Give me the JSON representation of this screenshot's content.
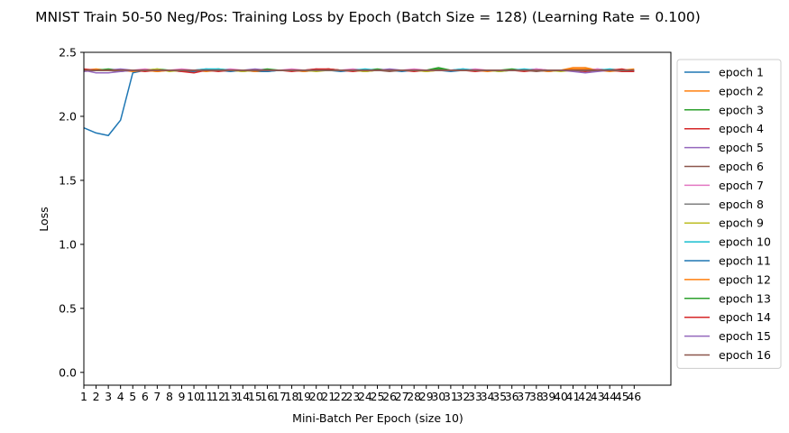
{
  "chart_data": {
    "type": "line",
    "title": "MNIST Train 50-50 Neg/Pos: Training Loss by Epoch (Batch Size = 128) (Learning Rate = 0.100)",
    "xlabel": "Mini-Batch Per Epoch (size 10)",
    "ylabel": "Loss",
    "xlim": [
      1,
      49
    ],
    "ylim": [
      -0.1,
      2.5
    ],
    "x_ticks": [
      1,
      2,
      3,
      4,
      5,
      6,
      7,
      8,
      9,
      10,
      11,
      12,
      13,
      14,
      15,
      16,
      17,
      18,
      19,
      20,
      21,
      22,
      23,
      24,
      25,
      26,
      27,
      28,
      29,
      30,
      31,
      32,
      33,
      34,
      35,
      36,
      37,
      38,
      39,
      40,
      41,
      42,
      43,
      44,
      45,
      46
    ],
    "y_ticks": [
      "0.0",
      "0.5",
      "1.0",
      "1.5",
      "2.0",
      "2.5"
    ],
    "y_tick_values": [
      0.0,
      0.5,
      1.0,
      1.5,
      2.0,
      2.5
    ],
    "legend_position": "outside-right",
    "grid": false,
    "x": [
      1,
      2,
      3,
      4,
      5,
      6,
      7,
      8,
      9,
      10,
      11,
      12,
      13,
      14,
      15,
      16,
      17,
      18,
      19,
      20,
      21,
      22,
      23,
      24,
      25,
      26,
      27,
      28,
      29,
      30,
      31,
      32,
      33,
      34,
      35,
      36,
      37,
      38,
      39,
      40,
      41,
      42,
      43,
      44,
      45,
      46
    ],
    "series": [
      {
        "name": "epoch 1",
        "color": "#1f77b4",
        "values": [
          1.91,
          1.87,
          1.85,
          1.97,
          2.34,
          2.36,
          2.36,
          2.36,
          2.35,
          2.35,
          2.36,
          2.36,
          2.35,
          2.36,
          2.35,
          2.35,
          2.36,
          2.36,
          2.35,
          2.36,
          2.36,
          2.35,
          2.36,
          2.35,
          2.36,
          2.36,
          2.35,
          2.36,
          2.36,
          2.36,
          2.35,
          2.36,
          2.36,
          2.36,
          2.35,
          2.36,
          2.36,
          2.36,
          2.35,
          2.36,
          2.36,
          2.35,
          2.36,
          2.36,
          2.36,
          2.36
        ]
      },
      {
        "name": "epoch 2",
        "color": "#ff7f0e",
        "values": [
          2.36,
          2.37,
          2.36,
          2.36,
          2.35,
          2.36,
          2.35,
          2.36,
          2.36,
          2.36,
          2.35,
          2.36,
          2.36,
          2.36,
          2.35,
          2.36,
          2.36,
          2.36,
          2.35,
          2.36,
          2.36,
          2.36,
          2.36,
          2.35,
          2.36,
          2.36,
          2.36,
          2.36,
          2.35,
          2.36,
          2.36,
          2.36,
          2.36,
          2.35,
          2.36,
          2.36,
          2.36,
          2.36,
          2.35,
          2.36,
          2.38,
          2.38,
          2.36,
          2.35,
          2.36,
          2.37
        ]
      },
      {
        "name": "epoch 3",
        "color": "#2ca02c",
        "values": [
          2.36,
          2.36,
          2.37,
          2.36,
          2.36,
          2.36,
          2.37,
          2.36,
          2.36,
          2.36,
          2.36,
          2.37,
          2.36,
          2.36,
          2.36,
          2.37,
          2.36,
          2.36,
          2.36,
          2.36,
          2.37,
          2.36,
          2.36,
          2.36,
          2.37,
          2.36,
          2.36,
          2.36,
          2.36,
          2.38,
          2.36,
          2.36,
          2.36,
          2.36,
          2.36,
          2.37,
          2.36,
          2.36,
          2.36,
          2.36,
          2.36,
          2.37,
          2.36,
          2.36,
          2.36,
          2.36
        ]
      },
      {
        "name": "epoch 4",
        "color": "#d62728",
        "values": [
          2.37,
          2.36,
          2.36,
          2.36,
          2.36,
          2.35,
          2.36,
          2.36,
          2.35,
          2.34,
          2.36,
          2.35,
          2.36,
          2.36,
          2.36,
          2.36,
          2.36,
          2.35,
          2.36,
          2.36,
          2.37,
          2.36,
          2.35,
          2.36,
          2.36,
          2.36,
          2.36,
          2.35,
          2.36,
          2.36,
          2.36,
          2.36,
          2.35,
          2.36,
          2.36,
          2.36,
          2.35,
          2.36,
          2.36,
          2.36,
          2.36,
          2.35,
          2.36,
          2.36,
          2.35,
          2.35
        ]
      },
      {
        "name": "epoch 5",
        "color": "#9467bd",
        "values": [
          2.35,
          2.36,
          2.36,
          2.37,
          2.36,
          2.36,
          2.36,
          2.36,
          2.36,
          2.36,
          2.37,
          2.36,
          2.36,
          2.36,
          2.37,
          2.36,
          2.36,
          2.36,
          2.36,
          2.37,
          2.36,
          2.36,
          2.36,
          2.36,
          2.36,
          2.37,
          2.36,
          2.36,
          2.36,
          2.36,
          2.36,
          2.37,
          2.36,
          2.36,
          2.36,
          2.36,
          2.36,
          2.37,
          2.36,
          2.36,
          2.36,
          2.36,
          2.37,
          2.36,
          2.36,
          2.36
        ]
      },
      {
        "name": "epoch 6",
        "color": "#8c564b",
        "values": [
          2.36,
          2.36,
          2.36,
          2.35,
          2.36,
          2.36,
          2.36,
          2.36,
          2.36,
          2.36,
          2.36,
          2.36,
          2.36,
          2.35,
          2.36,
          2.36,
          2.36,
          2.36,
          2.36,
          2.36,
          2.36,
          2.36,
          2.36,
          2.36,
          2.36,
          2.35,
          2.36,
          2.36,
          2.36,
          2.36,
          2.36,
          2.36,
          2.36,
          2.36,
          2.36,
          2.36,
          2.36,
          2.35,
          2.36,
          2.36,
          2.36,
          2.36,
          2.36,
          2.36,
          2.36,
          2.36
        ]
      },
      {
        "name": "epoch 7",
        "color": "#e377c2",
        "values": [
          2.36,
          2.36,
          2.36,
          2.36,
          2.36,
          2.37,
          2.36,
          2.36,
          2.37,
          2.36,
          2.36,
          2.36,
          2.37,
          2.36,
          2.36,
          2.36,
          2.36,
          2.37,
          2.36,
          2.36,
          2.36,
          2.36,
          2.37,
          2.36,
          2.36,
          2.36,
          2.36,
          2.37,
          2.36,
          2.36,
          2.36,
          2.36,
          2.37,
          2.36,
          2.36,
          2.36,
          2.36,
          2.37,
          2.36,
          2.36,
          2.36,
          2.36,
          2.37,
          2.36,
          2.36,
          2.36
        ]
      },
      {
        "name": "epoch 8",
        "color": "#7f7f7f",
        "values": [
          2.36,
          2.36,
          2.36,
          2.36,
          2.36,
          2.36,
          2.36,
          2.36,
          2.36,
          2.36,
          2.36,
          2.36,
          2.36,
          2.36,
          2.36,
          2.36,
          2.36,
          2.36,
          2.36,
          2.36,
          2.36,
          2.36,
          2.36,
          2.36,
          2.36,
          2.36,
          2.36,
          2.36,
          2.36,
          2.36,
          2.36,
          2.36,
          2.36,
          2.36,
          2.36,
          2.36,
          2.36,
          2.36,
          2.36,
          2.36,
          2.36,
          2.36,
          2.36,
          2.36,
          2.36,
          2.36
        ]
      },
      {
        "name": "epoch 9",
        "color": "#bcbd22",
        "values": [
          2.36,
          2.36,
          2.36,
          2.36,
          2.36,
          2.36,
          2.37,
          2.35,
          2.36,
          2.36,
          2.36,
          2.36,
          2.36,
          2.35,
          2.36,
          2.36,
          2.36,
          2.36,
          2.36,
          2.35,
          2.36,
          2.36,
          2.36,
          2.35,
          2.36,
          2.36,
          2.36,
          2.36,
          2.35,
          2.36,
          2.36,
          2.36,
          2.36,
          2.36,
          2.35,
          2.36,
          2.36,
          2.36,
          2.36,
          2.35,
          2.36,
          2.36,
          2.36,
          2.36,
          2.36,
          2.36
        ]
      },
      {
        "name": "epoch 10",
        "color": "#17becf",
        "values": [
          2.36,
          2.36,
          2.36,
          2.36,
          2.36,
          2.36,
          2.36,
          2.36,
          2.36,
          2.36,
          2.37,
          2.37,
          2.36,
          2.36,
          2.36,
          2.36,
          2.36,
          2.36,
          2.36,
          2.36,
          2.36,
          2.36,
          2.36,
          2.37,
          2.36,
          2.36,
          2.36,
          2.36,
          2.36,
          2.36,
          2.36,
          2.37,
          2.36,
          2.36,
          2.36,
          2.36,
          2.37,
          2.36,
          2.36,
          2.36,
          2.36,
          2.36,
          2.36,
          2.37,
          2.36,
          2.36
        ]
      },
      {
        "name": "epoch 11",
        "color": "#1f77b4",
        "values": [
          2.36,
          2.36,
          2.36,
          2.36,
          2.36,
          2.36,
          2.36,
          2.36,
          2.36,
          2.36,
          2.36,
          2.36,
          2.36,
          2.36,
          2.36,
          2.35,
          2.36,
          2.36,
          2.36,
          2.36,
          2.36,
          2.36,
          2.36,
          2.36,
          2.36,
          2.36,
          2.36,
          2.36,
          2.36,
          2.36,
          2.36,
          2.36,
          2.36,
          2.36,
          2.36,
          2.36,
          2.36,
          2.36,
          2.36,
          2.36,
          2.36,
          2.36,
          2.36,
          2.36,
          2.36,
          2.36
        ]
      },
      {
        "name": "epoch 12",
        "color": "#ff7f0e",
        "values": [
          2.36,
          2.36,
          2.36,
          2.36,
          2.36,
          2.36,
          2.35,
          2.36,
          2.36,
          2.36,
          2.36,
          2.36,
          2.36,
          2.36,
          2.36,
          2.36,
          2.36,
          2.36,
          2.36,
          2.36,
          2.36,
          2.36,
          2.36,
          2.36,
          2.36,
          2.36,
          2.36,
          2.36,
          2.36,
          2.36,
          2.36,
          2.36,
          2.36,
          2.36,
          2.36,
          2.36,
          2.36,
          2.36,
          2.36,
          2.36,
          2.37,
          2.37,
          2.36,
          2.36,
          2.36,
          2.36
        ]
      },
      {
        "name": "epoch 13",
        "color": "#2ca02c",
        "values": [
          2.36,
          2.36,
          2.36,
          2.36,
          2.36,
          2.36,
          2.36,
          2.36,
          2.36,
          2.36,
          2.36,
          2.36,
          2.36,
          2.36,
          2.36,
          2.36,
          2.36,
          2.36,
          2.36,
          2.36,
          2.36,
          2.36,
          2.36,
          2.36,
          2.36,
          2.36,
          2.36,
          2.36,
          2.36,
          2.37,
          2.36,
          2.36,
          2.36,
          2.36,
          2.36,
          2.36,
          2.36,
          2.36,
          2.36,
          2.36,
          2.36,
          2.36,
          2.36,
          2.36,
          2.36,
          2.36
        ]
      },
      {
        "name": "epoch 14",
        "color": "#d62728",
        "values": [
          2.36,
          2.36,
          2.36,
          2.36,
          2.36,
          2.36,
          2.36,
          2.36,
          2.36,
          2.36,
          2.36,
          2.36,
          2.36,
          2.36,
          2.36,
          2.36,
          2.36,
          2.36,
          2.36,
          2.37,
          2.37,
          2.36,
          2.36,
          2.36,
          2.36,
          2.36,
          2.36,
          2.36,
          2.36,
          2.36,
          2.36,
          2.36,
          2.36,
          2.36,
          2.36,
          2.36,
          2.36,
          2.36,
          2.36,
          2.36,
          2.36,
          2.36,
          2.36,
          2.36,
          2.37,
          2.35
        ]
      },
      {
        "name": "epoch 15",
        "color": "#9467bd",
        "values": [
          2.36,
          2.34,
          2.34,
          2.35,
          2.36,
          2.36,
          2.36,
          2.36,
          2.36,
          2.36,
          2.36,
          2.36,
          2.36,
          2.36,
          2.36,
          2.36,
          2.36,
          2.36,
          2.36,
          2.36,
          2.36,
          2.36,
          2.36,
          2.36,
          2.36,
          2.36,
          2.36,
          2.36,
          2.36,
          2.36,
          2.36,
          2.36,
          2.36,
          2.36,
          2.36,
          2.36,
          2.36,
          2.36,
          2.36,
          2.36,
          2.35,
          2.34,
          2.35,
          2.36,
          2.36,
          2.36
        ]
      },
      {
        "name": "epoch 16",
        "color": "#8c564b",
        "values": [
          2.36,
          2.36,
          2.36,
          2.36,
          2.36,
          2.36,
          2.36,
          2.36,
          2.36,
          2.36,
          2.36,
          2.36,
          2.36,
          2.36,
          2.36,
          2.36,
          2.36,
          2.36,
          2.36,
          2.36,
          2.36,
          2.36,
          2.36,
          2.36,
          2.36,
          2.36,
          2.36,
          2.36,
          2.36,
          2.36,
          2.36,
          2.36,
          2.36,
          2.36,
          2.36,
          2.36,
          2.36,
          2.36,
          2.36,
          2.36,
          2.36,
          2.36,
          2.36,
          2.36,
          2.36,
          2.36
        ]
      }
    ]
  }
}
